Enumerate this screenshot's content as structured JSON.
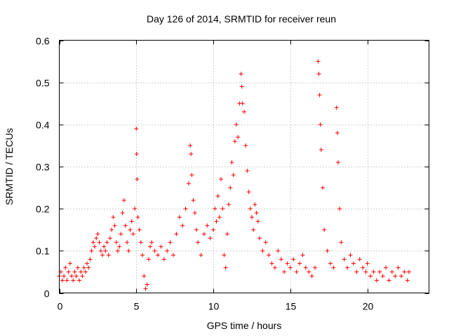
{
  "chart_data": {
    "type": "scatter",
    "title": "Day 126 of 2014, SRMTID for receiver reun",
    "xlabel": "GPS time / hours",
    "ylabel": "SRMTID / TECUs",
    "xlim": [
      0,
      24
    ],
    "ylim": [
      0,
      0.6
    ],
    "x_ticks": [
      0,
      5,
      10,
      15,
      20
    ],
    "x_tick_labels": [
      "0",
      "5",
      "10",
      "15",
      "20"
    ],
    "y_ticks": [
      0,
      0.1,
      0.2,
      0.3,
      0.4,
      0.5,
      0.6
    ],
    "y_tick_labels": [
      "0",
      "0.1",
      "0.2",
      "0.3",
      "0.4",
      "0.5",
      "0.6"
    ],
    "grid": true,
    "marker": "+",
    "color": "#ff0000",
    "series": [
      {
        "name": "SRMTID",
        "points": [
          [
            0.0,
            0.04
          ],
          [
            0.1,
            0.05
          ],
          [
            0.2,
            0.03
          ],
          [
            0.3,
            0.04
          ],
          [
            0.4,
            0.06
          ],
          [
            0.5,
            0.03
          ],
          [
            0.6,
            0.05
          ],
          [
            0.7,
            0.07
          ],
          [
            0.8,
            0.04
          ],
          [
            0.9,
            0.03
          ],
          [
            1.0,
            0.05
          ],
          [
            1.1,
            0.04
          ],
          [
            1.2,
            0.06
          ],
          [
            1.3,
            0.03
          ],
          [
            1.4,
            0.05
          ],
          [
            1.5,
            0.04
          ],
          [
            1.6,
            0.06
          ],
          [
            1.7,
            0.05
          ],
          [
            1.8,
            0.07
          ],
          [
            1.9,
            0.06
          ],
          [
            2.0,
            0.08
          ],
          [
            2.1,
            0.1
          ],
          [
            2.2,
            0.12
          ],
          [
            2.3,
            0.11
          ],
          [
            2.4,
            0.13
          ],
          [
            2.5,
            0.14
          ],
          [
            2.6,
            0.12
          ],
          [
            2.7,
            0.1
          ],
          [
            2.8,
            0.09
          ],
          [
            2.9,
            0.11
          ],
          [
            3.0,
            0.1
          ],
          [
            3.1,
            0.12
          ],
          [
            3.2,
            0.09
          ],
          [
            3.3,
            0.13
          ],
          [
            3.4,
            0.15
          ],
          [
            3.5,
            0.18
          ],
          [
            3.6,
            0.16
          ],
          [
            3.7,
            0.12
          ],
          [
            3.8,
            0.1
          ],
          [
            3.9,
            0.11
          ],
          [
            4.0,
            0.14
          ],
          [
            4.1,
            0.19
          ],
          [
            4.2,
            0.22
          ],
          [
            4.3,
            0.16
          ],
          [
            4.4,
            0.12
          ],
          [
            4.5,
            0.1
          ],
          [
            4.6,
            0.15
          ],
          [
            4.7,
            0.17
          ],
          [
            4.8,
            0.14
          ],
          [
            4.9,
            0.2
          ],
          [
            5.0,
            0.39
          ],
          [
            5.02,
            0.33
          ],
          [
            5.05,
            0.27
          ],
          [
            5.1,
            0.18
          ],
          [
            5.2,
            0.15
          ],
          [
            5.3,
            0.12
          ],
          [
            5.4,
            0.09
          ],
          [
            5.5,
            0.04
          ],
          [
            5.6,
            0.01
          ],
          [
            5.7,
            0.02
          ],
          [
            5.8,
            0.08
          ],
          [
            5.9,
            0.11
          ],
          [
            6.0,
            0.12
          ],
          [
            6.2,
            0.1
          ],
          [
            6.4,
            0.09
          ],
          [
            6.6,
            0.11
          ],
          [
            6.8,
            0.08
          ],
          [
            7.0,
            0.1
          ],
          [
            7.2,
            0.12
          ],
          [
            7.4,
            0.09
          ],
          [
            7.6,
            0.14
          ],
          [
            7.8,
            0.18
          ],
          [
            8.0,
            0.16
          ],
          [
            8.2,
            0.2
          ],
          [
            8.4,
            0.26
          ],
          [
            8.5,
            0.35
          ],
          [
            8.55,
            0.33
          ],
          [
            8.6,
            0.28
          ],
          [
            8.7,
            0.22
          ],
          [
            8.8,
            0.19
          ],
          [
            8.9,
            0.15
          ],
          [
            9.0,
            0.12
          ],
          [
            9.2,
            0.09
          ],
          [
            9.4,
            0.14
          ],
          [
            9.6,
            0.16
          ],
          [
            9.8,
            0.13
          ],
          [
            10.0,
            0.15
          ],
          [
            10.1,
            0.2
          ],
          [
            10.2,
            0.17
          ],
          [
            10.3,
            0.23
          ],
          [
            10.4,
            0.18
          ],
          [
            10.5,
            0.27
          ],
          [
            10.6,
            0.2
          ],
          [
            10.7,
            0.09
          ],
          [
            10.8,
            0.06
          ],
          [
            10.9,
            0.14
          ],
          [
            11.0,
            0.21
          ],
          [
            11.1,
            0.25
          ],
          [
            11.2,
            0.31
          ],
          [
            11.3,
            0.28
          ],
          [
            11.4,
            0.36
          ],
          [
            11.5,
            0.4
          ],
          [
            11.6,
            0.37
          ],
          [
            11.7,
            0.45
          ],
          [
            11.8,
            0.52
          ],
          [
            11.85,
            0.49
          ],
          [
            11.9,
            0.45
          ],
          [
            12.0,
            0.43
          ],
          [
            12.1,
            0.35
          ],
          [
            12.2,
            0.29
          ],
          [
            12.3,
            0.24
          ],
          [
            12.4,
            0.2
          ],
          [
            12.5,
            0.18
          ],
          [
            12.6,
            0.15
          ],
          [
            12.7,
            0.21
          ],
          [
            12.8,
            0.19
          ],
          [
            12.9,
            0.17
          ],
          [
            13.0,
            0.13
          ],
          [
            13.2,
            0.1
          ],
          [
            13.4,
            0.12
          ],
          [
            13.6,
            0.09
          ],
          [
            13.8,
            0.07
          ],
          [
            14.0,
            0.06
          ],
          [
            14.2,
            0.1
          ],
          [
            14.4,
            0.08
          ],
          [
            14.6,
            0.05
          ],
          [
            14.8,
            0.07
          ],
          [
            15.0,
            0.06
          ],
          [
            15.2,
            0.08
          ],
          [
            15.4,
            0.05
          ],
          [
            15.6,
            0.07
          ],
          [
            15.8,
            0.09
          ],
          [
            16.0,
            0.06
          ],
          [
            16.2,
            0.05
          ],
          [
            16.4,
            0.04
          ],
          [
            16.6,
            0.06
          ],
          [
            16.8,
            0.55
          ],
          [
            16.85,
            0.52
          ],
          [
            16.9,
            0.47
          ],
          [
            16.95,
            0.4
          ],
          [
            17.0,
            0.34
          ],
          [
            17.1,
            0.25
          ],
          [
            17.2,
            0.15
          ],
          [
            17.4,
            0.1
          ],
          [
            17.6,
            0.07
          ],
          [
            17.8,
            0.06
          ],
          [
            18.0,
            0.44
          ],
          [
            18.05,
            0.38
          ],
          [
            18.1,
            0.31
          ],
          [
            18.2,
            0.2
          ],
          [
            18.3,
            0.12
          ],
          [
            18.5,
            0.08
          ],
          [
            18.7,
            0.06
          ],
          [
            18.9,
            0.09
          ],
          [
            19.1,
            0.07
          ],
          [
            19.3,
            0.05
          ],
          [
            19.5,
            0.08
          ],
          [
            19.7,
            0.06
          ],
          [
            19.9,
            0.05
          ],
          [
            20.0,
            0.07
          ],
          [
            20.2,
            0.04
          ],
          [
            20.4,
            0.05
          ],
          [
            20.6,
            0.03
          ],
          [
            20.8,
            0.05
          ],
          [
            21.0,
            0.04
          ],
          [
            21.2,
            0.06
          ],
          [
            21.4,
            0.03
          ],
          [
            21.6,
            0.05
          ],
          [
            21.8,
            0.04
          ],
          [
            22.0,
            0.06
          ],
          [
            22.2,
            0.04
          ],
          [
            22.4,
            0.05
          ],
          [
            22.6,
            0.03
          ],
          [
            22.7,
            0.05
          ]
        ]
      }
    ]
  }
}
